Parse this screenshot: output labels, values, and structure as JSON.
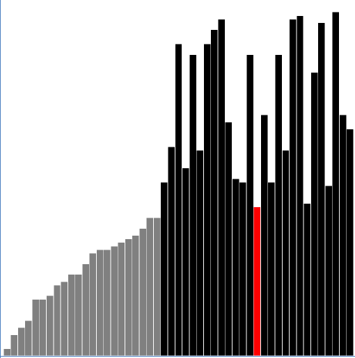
{
  "chart_data": {
    "type": "bar",
    "title": "",
    "xlabel": "",
    "ylabel": "",
    "ylim": [
      0,
      100
    ],
    "grid": false,
    "legend": "none",
    "values": [
      2,
      6,
      8,
      10,
      16,
      16,
      17,
      20,
      21,
      23,
      23,
      26,
      29,
      30,
      30,
      31,
      32,
      33,
      34,
      36,
      39,
      39,
      49,
      59,
      88,
      53,
      85,
      58,
      88,
      92,
      95,
      66,
      50,
      49,
      85,
      42,
      68,
      49,
      85,
      58,
      95,
      96,
      43,
      80,
      94,
      48,
      97,
      68,
      64
    ],
    "colors": [
      "#808080",
      "#808080",
      "#808080",
      "#808080",
      "#808080",
      "#808080",
      "#808080",
      "#808080",
      "#808080",
      "#808080",
      "#808080",
      "#808080",
      "#808080",
      "#808080",
      "#808080",
      "#808080",
      "#808080",
      "#808080",
      "#808080",
      "#808080",
      "#808080",
      "#808080",
      "#000000",
      "#000000",
      "#000000",
      "#000000",
      "#000000",
      "#000000",
      "#000000",
      "#000000",
      "#000000",
      "#000000",
      "#000000",
      "#000000",
      "#000000",
      "#ff0000",
      "#000000",
      "#000000",
      "#000000",
      "#000000",
      "#000000",
      "#000000",
      "#000000",
      "#000000",
      "#000000",
      "#000000",
      "#000000",
      "#000000",
      "#000000"
    ],
    "highlight_index": 35,
    "palette": {
      "sorted": "#808080",
      "unsorted": "#000000",
      "active": "#ff0000",
      "frame": "#4a7fc1",
      "background": "#ffffff"
    }
  }
}
